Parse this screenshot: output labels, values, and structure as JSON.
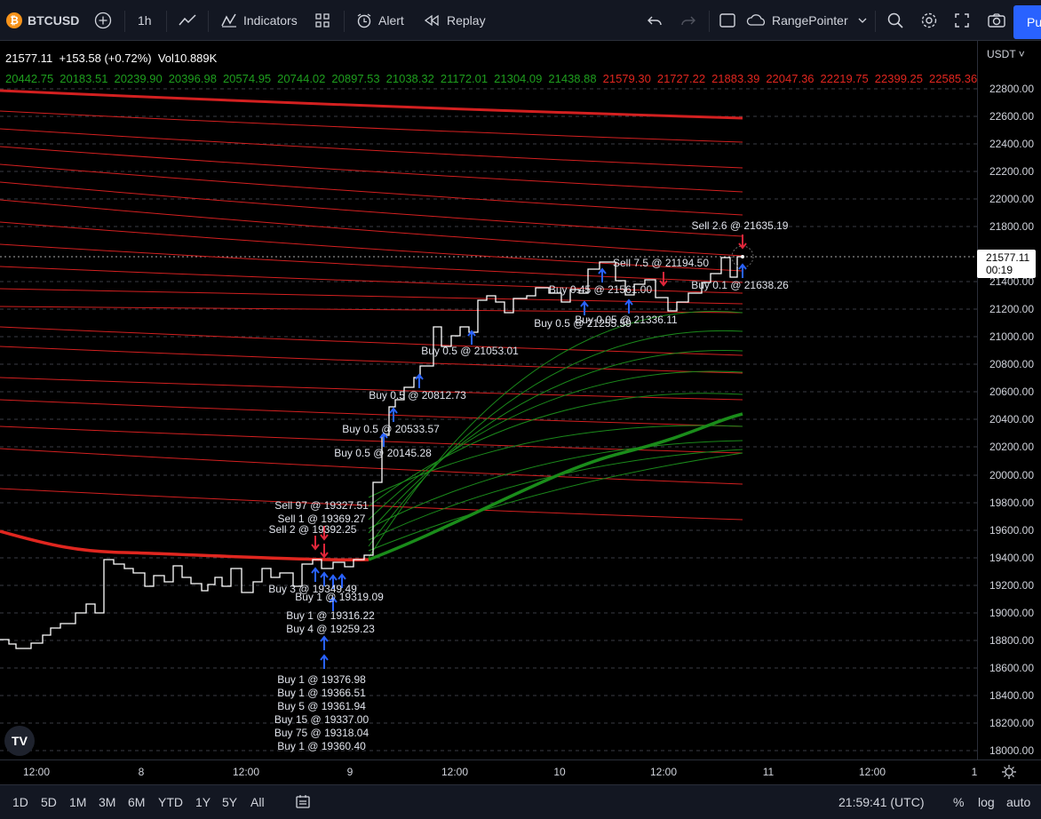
{
  "toolbar": {
    "symbol": "BTCUSD",
    "symbol_badge": "₿",
    "interval": "1h",
    "indicators": "Indicators",
    "alert": "Alert",
    "replay": "Replay",
    "drawing_tool": "RangePointer",
    "publish": "Pu"
  },
  "legend": {
    "price": "21577.11",
    "change": "+153.58 (+0.72%)",
    "volume": "Vol10.889K",
    "levels_green": [
      "20442.75",
      "20183.51",
      "20239.90",
      "20396.98",
      "20574.95",
      "20744.02",
      "20897.53",
      "21038.32",
      "21172.01",
      "21304.09",
      "21438.88"
    ],
    "levels_red": [
      "21579.30",
      "21727.22",
      "21883.39",
      "22047.36",
      "22219.75",
      "22399.25",
      "22585.36"
    ]
  },
  "price_scale": {
    "currency": "USDT",
    "labels": [
      "22800.00",
      "22600.00",
      "22400.00",
      "22200.00",
      "22000.00",
      "21800.00",
      "21400.00",
      "21200.00",
      "21000.00",
      "20800.00",
      "20600.00",
      "20400.00",
      "20200.00",
      "20000.00",
      "19800.00",
      "19600.00",
      "19400.00",
      "19200.00",
      "19000.00",
      "18800.00",
      "18600.00",
      "18400.00",
      "18200.00",
      "18000.00"
    ],
    "current_price": "21577.11",
    "countdown": "00:19"
  },
  "time_scale": {
    "labels": [
      "12:00",
      "8",
      "12:00",
      "9",
      "12:00",
      "10",
      "12:00",
      "11",
      "12:00",
      "1"
    ]
  },
  "annotations": [
    "Sell 2.6 @ 21635.19",
    "Sell 7.5 @ 21194.50",
    "Buy 0.45 @ 21561.00",
    "Buy 0.1 @ 21638.26",
    "Buy 0.05 @ 21336.11",
    "Buy 0.5 @ 21255.59",
    "Buy 0.5 @ 21053.01",
    "Buy 0.5 @ 20812.73",
    "Buy 0.5 @ 20533.57",
    "Buy 0.5 @ 20145.28",
    "Sell 97 @ 19327.51",
    "Sell 1 @ 19369.27",
    "Sell 2 @ 19392.25",
    "Buy 3 @ 19349.49",
    "Buy 1 @ 19319.09",
    "Buy 1 @ 19316.22",
    "Buy 4 @ 19259.23",
    "Buy 1 @ 19376.98",
    "Buy 1 @ 19366.51",
    "Buy 5 @ 19361.94",
    "Buy 15 @ 19337.00",
    "Buy 75 @ 19318.04",
    "Buy 1 @ 19360.40"
  ],
  "bottom_bar": {
    "ranges": [
      "1D",
      "5D",
      "1M",
      "3M",
      "6M",
      "YTD",
      "1Y",
      "5Y",
      "All"
    ],
    "clock": "21:59:41 (UTC)",
    "percent": "%",
    "log": "log",
    "auto": "auto"
  },
  "colors": {
    "up_level": "#1b8a1b",
    "down_level": "#d32020",
    "accent": "#2962ff"
  }
}
